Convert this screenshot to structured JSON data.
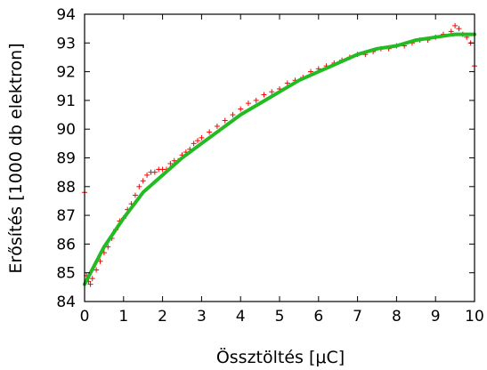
{
  "chart_data": {
    "type": "scatter",
    "xlabel": "Össztöltés [μC]",
    "ylabel": "Erősítés [1000 db elektron]",
    "xlim": [
      0,
      10
    ],
    "ylim": [
      84,
      94
    ],
    "x_ticks": [
      "0",
      "1",
      "2",
      "3",
      "4",
      "5",
      "6",
      "7",
      "8",
      "9",
      "10"
    ],
    "y_ticks": [
      "84",
      "85",
      "86",
      "87",
      "88",
      "89",
      "90",
      "91",
      "92",
      "93",
      "94"
    ],
    "grid": false,
    "legend": "none",
    "colors": {
      "measured": "#ff0000",
      "fit": "#22bb22"
    },
    "series": [
      {
        "kind": "measured",
        "marker": "plus",
        "x": [
          0.0,
          0.05,
          0.1,
          0.15,
          0.2,
          0.3,
          0.4,
          0.5,
          0.6,
          0.7,
          0.8,
          0.9,
          1.0,
          1.1,
          1.2,
          1.3,
          1.4,
          1.5,
          1.6,
          1.7,
          1.8,
          1.9,
          2.0,
          2.1,
          2.2,
          2.3,
          2.4,
          2.5,
          2.6,
          2.7,
          2.8,
          2.9,
          3.0,
          3.2,
          3.4,
          3.6,
          3.8,
          4.0,
          4.2,
          4.4,
          4.6,
          4.8,
          5.0,
          5.2,
          5.4,
          5.6,
          5.8,
          6.0,
          6.2,
          6.4,
          6.6,
          6.8,
          7.0,
          7.2,
          7.4,
          7.6,
          7.8,
          8.0,
          8.2,
          8.4,
          8.6,
          8.8,
          9.0,
          9.2,
          9.4,
          9.5,
          9.6,
          9.7,
          9.8,
          9.9,
          10.0
        ],
        "y": [
          87.8,
          84.9,
          84.7,
          84.6,
          84.8,
          85.1,
          85.4,
          85.7,
          85.9,
          86.2,
          86.5,
          86.8,
          86.9,
          87.2,
          87.4,
          87.7,
          88.0,
          88.2,
          88.4,
          88.5,
          88.5,
          88.6,
          88.6,
          88.6,
          88.8,
          88.9,
          88.9,
          89.1,
          89.2,
          89.3,
          89.5,
          89.6,
          89.7,
          89.9,
          90.1,
          90.3,
          90.5,
          90.7,
          90.9,
          91.0,
          91.2,
          91.3,
          91.4,
          91.6,
          91.7,
          91.8,
          92.0,
          92.1,
          92.2,
          92.3,
          92.4,
          92.5,
          92.6,
          92.6,
          92.7,
          92.8,
          92.8,
          92.9,
          92.9,
          93.0,
          93.1,
          93.1,
          93.2,
          93.3,
          93.4,
          93.6,
          93.5,
          93.3,
          93.2,
          93.0,
          92.2
        ]
      },
      {
        "kind": "fit",
        "marker": "line",
        "x": [
          0.0,
          0.5,
          1.0,
          1.5,
          2.0,
          2.5,
          3.0,
          3.5,
          4.0,
          4.5,
          5.0,
          5.5,
          6.0,
          6.5,
          7.0,
          7.5,
          8.0,
          8.5,
          9.0,
          9.5,
          10.0
        ],
        "y": [
          84.6,
          85.9,
          86.9,
          87.8,
          88.4,
          89.0,
          89.5,
          90.0,
          90.5,
          90.9,
          91.3,
          91.7,
          92.0,
          92.3,
          92.6,
          92.8,
          92.9,
          93.1,
          93.2,
          93.3,
          93.3
        ]
      }
    ]
  }
}
